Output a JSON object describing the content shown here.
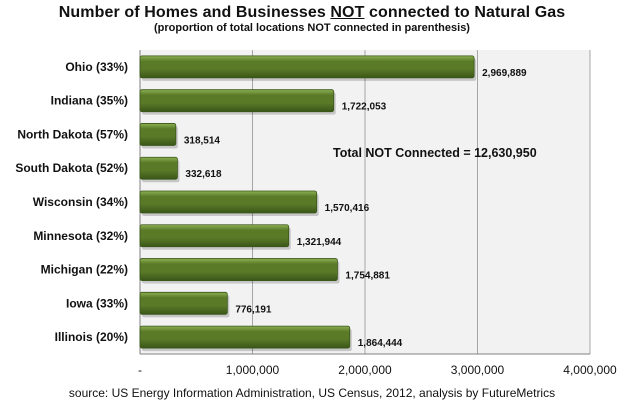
{
  "chart_data": {
    "type": "bar",
    "orientation": "horizontal",
    "title_prefix": "Number of Homes and Businesses ",
    "title_emphasis": "NOT",
    "title_suffix": " connected to Natural Gas",
    "subtitle": "(proportion of total locations NOT connected in parenthesis)",
    "categories": [
      "Ohio (33%)",
      "Indiana (35%)",
      "North Dakota (57%)",
      "South Dakota (52%)",
      "Wisconsin (34%)",
      "Minnesota (32%)",
      "Michigan (22%)",
      "Iowa (33%)",
      "Illinois (20%)"
    ],
    "values": [
      2969889,
      1722053,
      318514,
      332618,
      1570416,
      1321944,
      1754881,
      776191,
      1864444
    ],
    "value_labels": [
      "2,969,889",
      "1,722,053",
      "318,514",
      "332,618",
      "1,570,416",
      "1,321,944",
      "1,754,881",
      "776,191",
      "1,864,444"
    ],
    "xlim": [
      0,
      4000000
    ],
    "x_ticks": [
      0,
      1000000,
      2000000,
      3000000,
      4000000
    ],
    "x_tick_labels": [
      "-",
      "1,000,000",
      "2,000,000",
      "3,000,000",
      "4,000,000"
    ],
    "grid": true,
    "annotation": "Total NOT Connected = 12,630,950",
    "source": "source: US Energy Information Administration, US Census, 2012, analysis by FutureMetrics",
    "colors": {
      "bar_fill": "#5a7a28",
      "bar_dark": "#3a5618",
      "bar_light": "#8db052",
      "plot_background": "#f2f2f2",
      "gridline": "#a6a6a6"
    }
  }
}
